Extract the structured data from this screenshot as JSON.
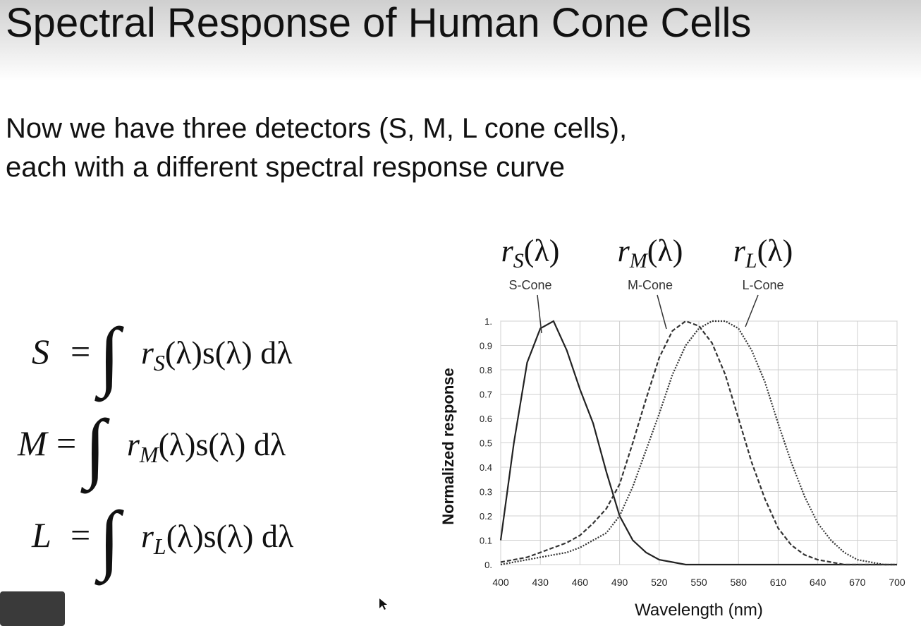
{
  "title": "Spectral Response of Human Cone Cells",
  "body": [
    "Now we have three detectors (S, M, L cone cells),",
    "each with a different spectral response curve"
  ],
  "equations": [
    {
      "lhs": "S",
      "eq": "=",
      "integral": "∫",
      "fn": "r",
      "sub": "S",
      "rest": "(λ)s(λ) dλ"
    },
    {
      "lhs": "M",
      "eq": "=",
      "integral": "∫",
      "fn": "r",
      "sub": "M",
      "rest": "(λ)s(λ) dλ"
    },
    {
      "lhs": "L",
      "eq": "=",
      "integral": "∫",
      "fn": "r",
      "sub": "L",
      "rest": "(λ)s(λ) dλ"
    }
  ],
  "chart_data": {
    "type": "line",
    "x_label": "Wavelength (nm)",
    "y_label": "Normalized response",
    "x": [
      400,
      410,
      420,
      430,
      440,
      450,
      460,
      470,
      480,
      490,
      500,
      510,
      520,
      530,
      540,
      550,
      560,
      570,
      580,
      590,
      600,
      610,
      620,
      630,
      640,
      650,
      660,
      670,
      680,
      690,
      700
    ],
    "series": [
      {
        "name": "S-Cone",
        "fn": "r",
        "sub": "S",
        "arg": "(λ)",
        "color": "#222222",
        "style": "solid",
        "values": [
          0.1,
          0.5,
          0.83,
          0.97,
          1.0,
          0.88,
          0.72,
          0.58,
          0.38,
          0.2,
          0.1,
          0.05,
          0.02,
          0.01,
          0,
          0,
          0,
          0,
          0,
          0,
          0,
          0,
          0,
          0,
          0,
          0,
          0,
          0,
          0,
          0,
          0
        ]
      },
      {
        "name": "M-Cone",
        "fn": "r",
        "sub": "M",
        "arg": "(λ)",
        "color": "#333333",
        "style": "dashed",
        "values": [
          0.01,
          0.02,
          0.03,
          0.05,
          0.07,
          0.09,
          0.12,
          0.17,
          0.23,
          0.33,
          0.5,
          0.68,
          0.85,
          0.96,
          1.0,
          0.98,
          0.91,
          0.78,
          0.6,
          0.42,
          0.27,
          0.15,
          0.08,
          0.04,
          0.02,
          0.01,
          0,
          0,
          0,
          0,
          0
        ]
      },
      {
        "name": "L-Cone",
        "fn": "r",
        "sub": "L",
        "arg": "(λ)",
        "color": "#333333",
        "style": "dotted",
        "values": [
          0,
          0.01,
          0.02,
          0.03,
          0.04,
          0.05,
          0.07,
          0.1,
          0.13,
          0.2,
          0.32,
          0.47,
          0.62,
          0.78,
          0.9,
          0.97,
          1.0,
          1.0,
          0.97,
          0.88,
          0.75,
          0.58,
          0.42,
          0.28,
          0.17,
          0.1,
          0.05,
          0.02,
          0.01,
          0,
          0
        ]
      }
    ],
    "xlim": [
      400,
      700
    ],
    "xticks": [
      400,
      430,
      460,
      490,
      520,
      550,
      580,
      610,
      640,
      670,
      700
    ],
    "ylim": [
      0,
      1
    ],
    "yticks": [
      {
        "value": 0,
        "label": "0."
      },
      0.1,
      0.2,
      0.3,
      0.4,
      0.5,
      0.6,
      0.7,
      0.8,
      0.9,
      {
        "value": 1,
        "label": "1."
      }
    ],
    "grid": true
  }
}
